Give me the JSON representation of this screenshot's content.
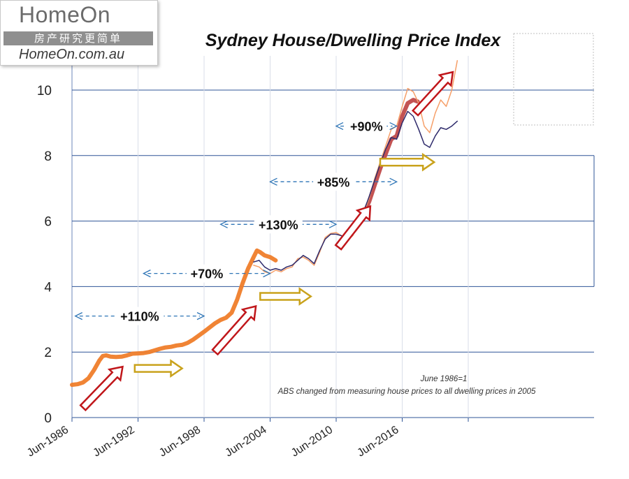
{
  "logo": {
    "name": "HomeOn",
    "chinese": "房产研究更简单",
    "url": "HomeOn.com.au"
  },
  "chart_data": {
    "type": "line",
    "title": "Sydney House/Dwelling Price Index",
    "xlabel": "",
    "ylabel": "",
    "x_ticks": [
      "Jun-1986",
      "Jun-1992",
      "Jun-1998",
      "Jun-2004",
      "Jun-2010",
      "Jun-2016"
    ],
    "y_ticks": [
      0,
      2,
      4,
      6,
      8,
      10
    ],
    "xlim": [
      1986.5,
      2023.5
    ],
    "ylim": [
      0,
      10.5
    ],
    "grid": true,
    "notes": [
      "June 1986=1",
      "ABS changed from measuring house prices to all dwelling prices in 2005"
    ],
    "series": [
      {
        "color": "#ef7d2a",
        "style": "thick",
        "points": [
          [
            1986.5,
            1.0
          ],
          [
            1987.0,
            1.02
          ],
          [
            1987.5,
            1.07
          ],
          [
            1988.0,
            1.2
          ],
          [
            1988.5,
            1.45
          ],
          [
            1989.0,
            1.75
          ],
          [
            1989.3,
            1.88
          ],
          [
            1989.6,
            1.9
          ],
          [
            1990.0,
            1.86
          ],
          [
            1990.5,
            1.85
          ],
          [
            1991.0,
            1.86
          ],
          [
            1991.5,
            1.9
          ],
          [
            1992.0,
            1.95
          ],
          [
            1992.5,
            1.96
          ],
          [
            1993.0,
            1.97
          ],
          [
            1993.5,
            2.0
          ],
          [
            1994.0,
            2.05
          ],
          [
            1994.5,
            2.1
          ],
          [
            1995.0,
            2.14
          ],
          [
            1995.5,
            2.16
          ],
          [
            1996.0,
            2.2
          ],
          [
            1996.5,
            2.22
          ],
          [
            1997.0,
            2.28
          ],
          [
            1997.5,
            2.38
          ],
          [
            1998.0,
            2.5
          ],
          [
            1998.5,
            2.62
          ],
          [
            1999.0,
            2.75
          ],
          [
            1999.5,
            2.88
          ],
          [
            2000.0,
            2.98
          ],
          [
            2000.5,
            3.05
          ],
          [
            2001.0,
            3.2
          ],
          [
            2001.5,
            3.6
          ],
          [
            2002.0,
            4.1
          ],
          [
            2002.5,
            4.55
          ],
          [
            2003.0,
            4.9
          ],
          [
            2003.3,
            5.1
          ],
          [
            2003.6,
            5.05
          ],
          [
            2004.0,
            4.95
          ],
          [
            2004.5,
            4.9
          ],
          [
            2005.0,
            4.8
          ]
        ]
      },
      {
        "color": "#c04a4a",
        "style": "thick",
        "points": [
          [
            2013.0,
            6.2
          ],
          [
            2013.5,
            6.6
          ],
          [
            2014.0,
            7.1
          ],
          [
            2014.5,
            7.6
          ],
          [
            2015.0,
            8.05
          ],
          [
            2015.5,
            8.5
          ],
          [
            2016.0,
            8.6
          ],
          [
            2016.5,
            9.2
          ],
          [
            2017.0,
            9.6
          ],
          [
            2017.5,
            9.7
          ],
          [
            2017.9,
            9.65
          ]
        ]
      },
      {
        "color": "#2e2a6b",
        "style": "thin",
        "points": [
          [
            2003.0,
            4.75
          ],
          [
            2003.5,
            4.8
          ],
          [
            2004.0,
            4.6
          ],
          [
            2004.5,
            4.5
          ],
          [
            2005.0,
            4.55
          ],
          [
            2005.5,
            4.5
          ],
          [
            2006.0,
            4.6
          ],
          [
            2006.5,
            4.65
          ],
          [
            2007.0,
            4.8
          ],
          [
            2007.5,
            4.95
          ],
          [
            2008.0,
            4.85
          ],
          [
            2008.5,
            4.7
          ],
          [
            2009.0,
            5.1
          ],
          [
            2009.5,
            5.45
          ],
          [
            2010.0,
            5.6
          ],
          [
            2010.5,
            5.6
          ],
          [
            2011.0,
            5.55
          ],
          [
            2011.5,
            5.5
          ],
          [
            2012.0,
            5.6
          ],
          [
            2012.5,
            5.95
          ],
          [
            2013.0,
            6.3
          ],
          [
            2013.5,
            6.75
          ],
          [
            2014.0,
            7.25
          ],
          [
            2014.5,
            7.75
          ],
          [
            2015.0,
            8.2
          ],
          [
            2015.5,
            8.55
          ],
          [
            2016.0,
            8.5
          ],
          [
            2016.5,
            9.0
          ],
          [
            2017.0,
            9.35
          ],
          [
            2017.5,
            9.2
          ],
          [
            2018.0,
            8.8
          ],
          [
            2018.5,
            8.35
          ],
          [
            2019.0,
            8.25
          ],
          [
            2019.5,
            8.6
          ],
          [
            2020.0,
            8.85
          ],
          [
            2020.5,
            8.8
          ],
          [
            2021.0,
            8.9
          ],
          [
            2021.5,
            9.05
          ]
        ]
      },
      {
        "color": "#f6a06a",
        "style": "thin",
        "points": [
          [
            2003.0,
            4.65
          ],
          [
            2003.5,
            4.6
          ],
          [
            2004.0,
            4.45
          ],
          [
            2004.5,
            4.4
          ],
          [
            2005.0,
            4.5
          ],
          [
            2005.5,
            4.45
          ],
          [
            2006.0,
            4.55
          ],
          [
            2006.5,
            4.6
          ],
          [
            2007.0,
            4.85
          ],
          [
            2007.5,
            4.9
          ],
          [
            2008.0,
            4.8
          ],
          [
            2008.5,
            4.65
          ],
          [
            2009.0,
            5.05
          ],
          [
            2009.5,
            5.5
          ],
          [
            2010.0,
            5.62
          ],
          [
            2010.5,
            5.65
          ],
          [
            2011.0,
            5.55
          ],
          [
            2011.5,
            5.45
          ],
          [
            2012.0,
            5.55
          ],
          [
            2012.5,
            5.9
          ],
          [
            2013.0,
            6.25
          ],
          [
            2013.5,
            6.7
          ],
          [
            2014.0,
            7.3
          ],
          [
            2014.5,
            7.8
          ],
          [
            2015.0,
            8.3
          ],
          [
            2015.5,
            8.8
          ],
          [
            2016.0,
            8.9
          ],
          [
            2016.5,
            9.5
          ],
          [
            2017.0,
            10.05
          ],
          [
            2017.5,
            9.95
          ],
          [
            2018.0,
            9.6
          ],
          [
            2018.5,
            8.9
          ],
          [
            2019.0,
            8.7
          ],
          [
            2019.5,
            9.3
          ],
          [
            2020.0,
            9.7
          ],
          [
            2020.5,
            9.5
          ],
          [
            2021.0,
            10.0
          ],
          [
            2021.5,
            10.9
          ]
        ]
      }
    ],
    "annotations": [
      {
        "label": "+110%",
        "from": 1986.8,
        "to": 1998.5,
        "y": 3.1
      },
      {
        "label": "+70%",
        "from": 1993.0,
        "to": 2004.5,
        "y": 4.4
      },
      {
        "label": "+130%",
        "from": 2000.0,
        "to": 2010.5,
        "y": 5.9
      },
      {
        "label": "+85%",
        "from": 2004.5,
        "to": 2016.0,
        "y": 7.2
      },
      {
        "label": "+90%",
        "from": 2010.5,
        "to": 2016.0,
        "y": 8.9
      }
    ],
    "arrows": [
      {
        "kind": "rising",
        "color": "#c0161a",
        "x": 1987.5,
        "y": 0.3,
        "dx": 3.6,
        "dy": 1.25
      },
      {
        "kind": "flat",
        "color": "#c9a21c",
        "x": 1992.2,
        "y": 1.5,
        "dx": 4.3,
        "dy": 0
      },
      {
        "kind": "rising",
        "color": "#c0161a",
        "x": 1999.5,
        "y": 2.0,
        "dx": 3.7,
        "dy": 1.4
      },
      {
        "kind": "flat",
        "color": "#c9a21c",
        "x": 2003.6,
        "y": 3.7,
        "dx": 4.6,
        "dy": 0
      },
      {
        "kind": "rising",
        "color": "#c0161a",
        "x": 2010.7,
        "y": 5.2,
        "dx": 2.9,
        "dy": 1.25
      },
      {
        "kind": "flat",
        "color": "#c9a21c",
        "x": 2014.5,
        "y": 7.8,
        "dx": 4.9,
        "dy": 0
      },
      {
        "kind": "rising",
        "color": "#c0161a",
        "x": 2017.7,
        "y": 9.3,
        "dx": 3.4,
        "dy": 1.25
      }
    ]
  }
}
